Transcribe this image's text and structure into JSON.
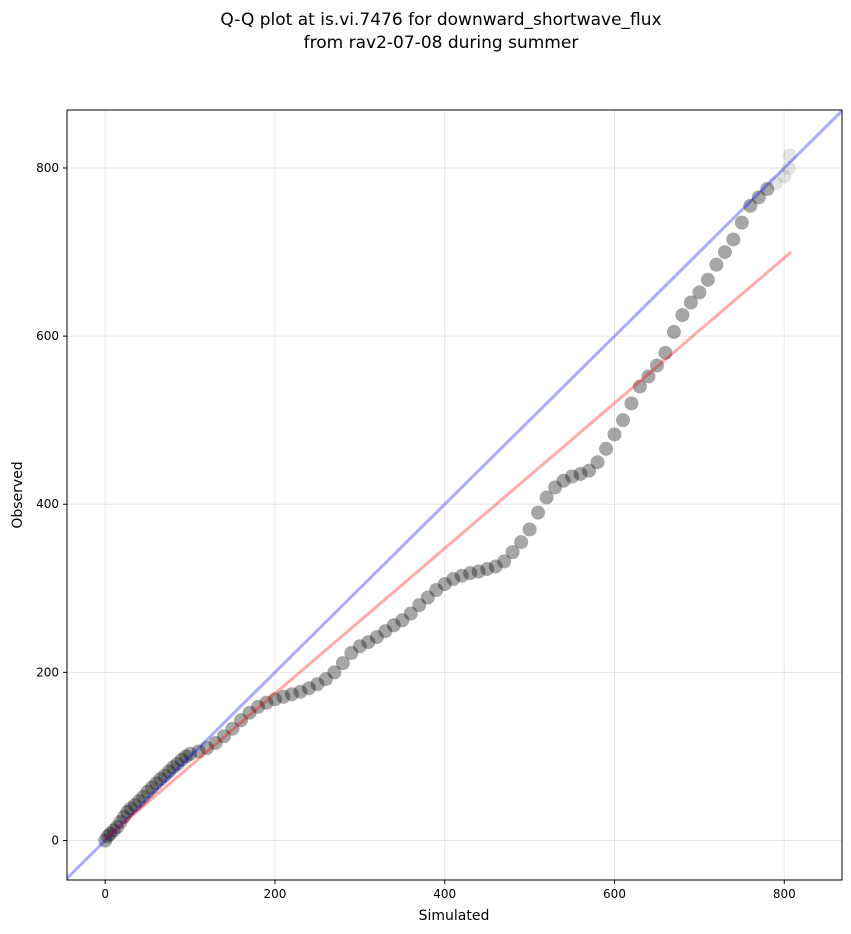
{
  "chart_data": {
    "type": "scatter",
    "title_lines": [
      "Q-Q plot at is.vi.7476 for downward_shortwave_flux",
      "from rav2-07-08 during summer"
    ],
    "xlabel": "Simulated",
    "ylabel": "Observed",
    "xlim": [
      -45,
      868
    ],
    "ylim": [
      -47,
      869
    ],
    "xticks": [
      0,
      200,
      400,
      600,
      800
    ],
    "yticks": [
      0,
      200,
      400,
      600,
      800
    ],
    "grid": true,
    "colors": {
      "points": "#000000",
      "one_to_one": "#0000ff",
      "fit": "#ff0000"
    },
    "one_to_one_line": {
      "name": "1:1",
      "from": [
        -45,
        -45
      ],
      "to": [
        868,
        868
      ]
    },
    "fit_line": {
      "from": [
        0,
        2
      ],
      "to": [
        808,
        700
      ]
    },
    "points": [
      [
        0,
        0
      ],
      [
        3,
        5
      ],
      [
        6,
        8
      ],
      [
        10,
        12
      ],
      [
        14,
        16
      ],
      [
        18,
        22
      ],
      [
        22,
        28
      ],
      [
        26,
        34
      ],
      [
        30,
        38
      ],
      [
        35,
        42
      ],
      [
        40,
        47
      ],
      [
        45,
        52
      ],
      [
        50,
        58
      ],
      [
        55,
        63
      ],
      [
        60,
        68
      ],
      [
        65,
        73
      ],
      [
        70,
        77
      ],
      [
        75,
        82
      ],
      [
        80,
        87
      ],
      [
        85,
        91
      ],
      [
        90,
        96
      ],
      [
        95,
        100
      ],
      [
        100,
        103
      ],
      [
        110,
        106
      ],
      [
        120,
        110
      ],
      [
        130,
        116
      ],
      [
        140,
        124
      ],
      [
        150,
        133
      ],
      [
        160,
        143
      ],
      [
        170,
        152
      ],
      [
        180,
        159
      ],
      [
        190,
        164
      ],
      [
        200,
        168
      ],
      [
        210,
        171
      ],
      [
        220,
        174
      ],
      [
        230,
        177
      ],
      [
        240,
        181
      ],
      [
        250,
        186
      ],
      [
        260,
        192
      ],
      [
        270,
        200
      ],
      [
        280,
        211
      ],
      [
        290,
        223
      ],
      [
        300,
        231
      ],
      [
        310,
        236
      ],
      [
        320,
        242
      ],
      [
        330,
        249
      ],
      [
        340,
        256
      ],
      [
        350,
        262
      ],
      [
        360,
        270
      ],
      [
        370,
        280
      ],
      [
        380,
        289
      ],
      [
        390,
        298
      ],
      [
        400,
        305
      ],
      [
        410,
        311
      ],
      [
        420,
        315
      ],
      [
        430,
        318
      ],
      [
        440,
        320
      ],
      [
        450,
        323
      ],
      [
        460,
        326
      ],
      [
        470,
        332
      ],
      [
        480,
        343
      ],
      [
        490,
        355
      ],
      [
        500,
        370
      ],
      [
        510,
        390
      ],
      [
        520,
        408
      ],
      [
        530,
        420
      ],
      [
        540,
        428
      ],
      [
        550,
        433
      ],
      [
        560,
        436
      ],
      [
        570,
        440
      ],
      [
        580,
        450
      ],
      [
        590,
        466
      ],
      [
        600,
        483
      ],
      [
        610,
        500
      ],
      [
        620,
        520
      ],
      [
        630,
        540
      ],
      [
        640,
        552
      ],
      [
        650,
        565
      ],
      [
        660,
        580
      ],
      [
        670,
        605
      ],
      [
        680,
        625
      ],
      [
        690,
        640
      ],
      [
        700,
        652
      ],
      [
        710,
        667
      ],
      [
        720,
        685
      ],
      [
        730,
        700
      ],
      [
        740,
        715
      ],
      [
        750,
        735
      ],
      [
        760,
        755
      ],
      [
        770,
        765
      ],
      [
        780,
        775
      ],
      [
        790,
        782
      ],
      [
        800,
        790
      ],
      [
        805,
        800
      ],
      [
        806,
        815
      ]
    ]
  }
}
